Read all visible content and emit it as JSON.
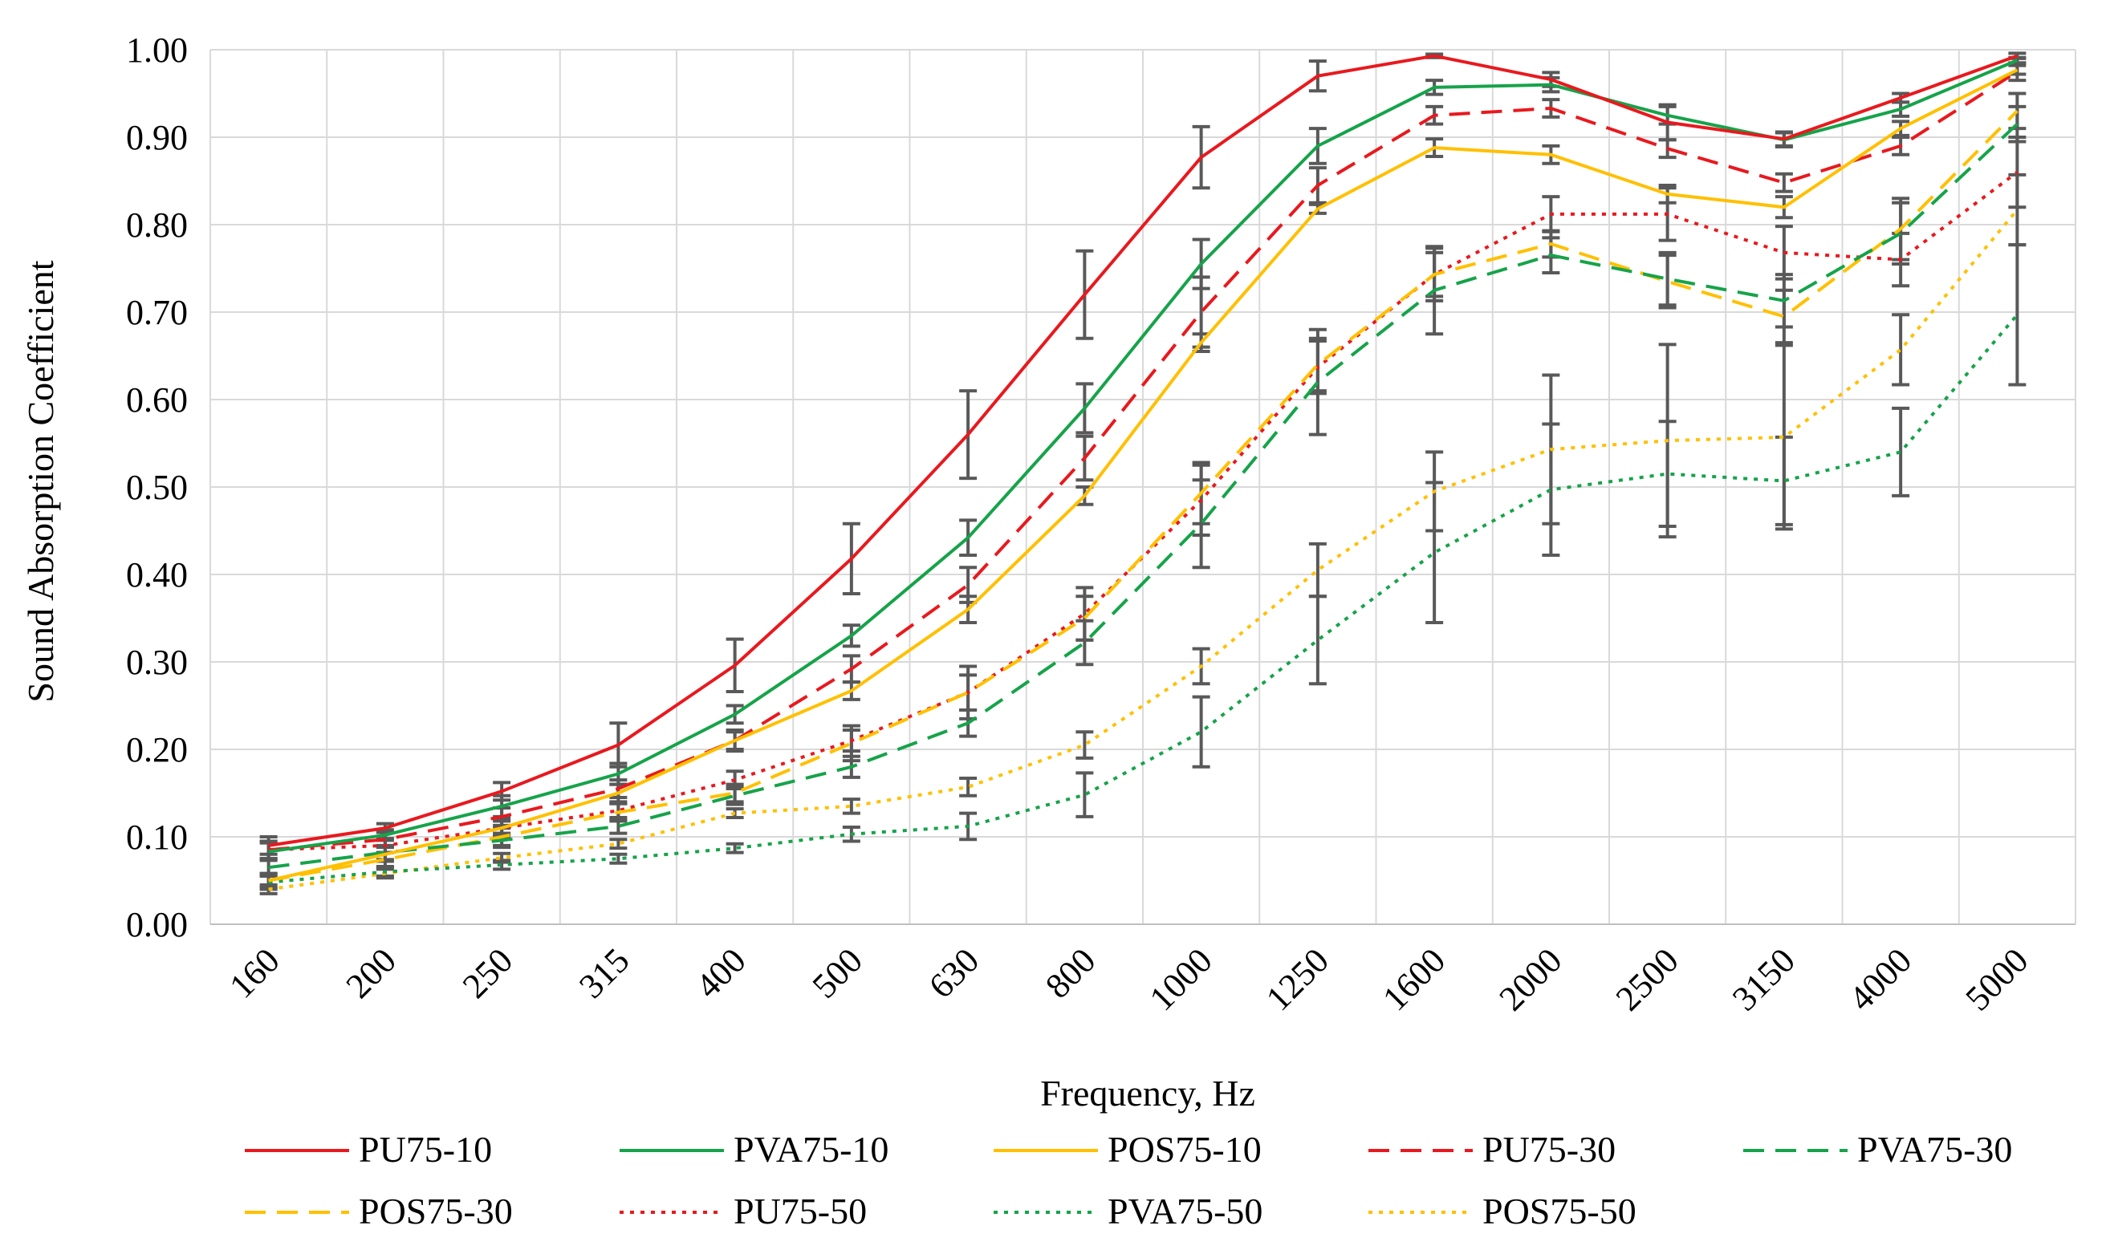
{
  "chart_data": {
    "type": "line",
    "title": "",
    "xlabel": "Frequency, Hz",
    "ylabel": "Sound Absorption Coefficient",
    "ylim": [
      0,
      1
    ],
    "y_ticks": [
      "0.00",
      "0.10",
      "0.20",
      "0.30",
      "0.40",
      "0.50",
      "0.60",
      "0.70",
      "0.80",
      "0.90",
      "1.00"
    ],
    "grid": true,
    "legend_position": "bottom",
    "categories": [
      "160",
      "200",
      "250",
      "315",
      "400",
      "500",
      "630",
      "800",
      "1000",
      "1250",
      "1600",
      "2000",
      "2500",
      "3150",
      "4000",
      "5000"
    ],
    "series": [
      {
        "name": "PU75-10",
        "color": "#e8191e",
        "dash": "solid",
        "values": [
          0.09,
          0.11,
          0.152,
          0.205,
          0.296,
          0.418,
          0.56,
          0.72,
          0.877,
          0.97,
          0.993,
          0.966,
          0.917,
          0.898,
          0.945,
          0.993
        ],
        "errors": [
          0.01,
          0.005,
          0.01,
          0.025,
          0.03,
          0.04,
          0.05,
          0.05,
          0.035,
          0.017,
          0.002,
          0.008,
          0.02,
          0.008,
          0.005,
          0.003
        ]
      },
      {
        "name": "PVA75-10",
        "color": "#16a34a",
        "dash": "solid",
        "values": [
          0.083,
          0.102,
          0.135,
          0.172,
          0.24,
          0.33,
          0.442,
          0.59,
          0.755,
          0.89,
          0.957,
          0.96,
          0.925,
          0.897,
          0.932,
          0.988
        ],
        "errors": [
          0.01,
          0.006,
          0.012,
          0.012,
          0.01,
          0.012,
          0.02,
          0.028,
          0.028,
          0.02,
          0.008,
          0.008,
          0.01,
          0.008,
          0.008,
          0.003
        ]
      },
      {
        "name": "POS75-10",
        "color": "#ffc000",
        "dash": "solid",
        "values": [
          0.05,
          0.08,
          0.11,
          0.15,
          0.21,
          0.267,
          0.36,
          0.49,
          0.665,
          0.818,
          0.888,
          0.88,
          0.835,
          0.82,
          0.91,
          0.977
        ],
        "errors": [
          0.008,
          0.008,
          0.01,
          0.01,
          0.012,
          0.01,
          0.015,
          0.01,
          0.01,
          0.005,
          0.01,
          0.01,
          0.01,
          0.012,
          0.008,
          0.005
        ]
      },
      {
        "name": "PU75-30",
        "color": "#e8191e",
        "dash": "dashed",
        "values": [
          0.085,
          0.097,
          0.123,
          0.155,
          0.21,
          0.292,
          0.388,
          0.533,
          0.7,
          0.845,
          0.925,
          0.933,
          0.887,
          0.848,
          0.89,
          0.975
        ],
        "errors": [
          0.01,
          0.008,
          0.01,
          0.01,
          0.01,
          0.015,
          0.02,
          0.025,
          0.04,
          0.02,
          0.01,
          0.01,
          0.01,
          0.01,
          0.01,
          0.01
        ]
      },
      {
        "name": "PVA75-30",
        "color": "#16a34a",
        "dash": "dashed",
        "values": [
          0.065,
          0.082,
          0.096,
          0.112,
          0.147,
          0.18,
          0.23,
          0.322,
          0.458,
          0.62,
          0.725,
          0.765,
          0.738,
          0.713,
          0.79,
          0.915
        ],
        "errors": [
          0.01,
          0.008,
          0.008,
          0.008,
          0.01,
          0.012,
          0.015,
          0.025,
          0.05,
          0.06,
          0.05,
          0.02,
          0.03,
          0.03,
          0.035,
          0.02
        ]
      },
      {
        "name": "POS75-30",
        "color": "#ffc000",
        "dash": "dashed",
        "values": [
          0.05,
          0.074,
          0.1,
          0.128,
          0.15,
          0.207,
          0.265,
          0.35,
          0.493,
          0.64,
          0.743,
          0.778,
          0.735,
          0.695,
          0.795,
          0.93
        ],
        "errors": [
          0.008,
          0.008,
          0.01,
          0.01,
          0.01,
          0.02,
          0.03,
          0.025,
          0.035,
          0.03,
          0.025,
          0.015,
          0.03,
          0.03,
          0.035,
          0.02
        ]
      },
      {
        "name": "PU75-50",
        "color": "#e8191e",
        "dash": "dotted",
        "values": [
          0.085,
          0.09,
          0.11,
          0.13,
          0.165,
          0.21,
          0.265,
          0.355,
          0.485,
          0.637,
          0.743,
          0.812,
          0.812,
          0.768,
          0.76,
          0.86
        ],
        "errors": [
          0.01,
          0.008,
          0.008,
          0.008,
          0.01,
          0.012,
          0.02,
          0.03,
          0.04,
          0.03,
          0.03,
          0.02,
          0.03,
          0.03,
          0.03,
          0.04
        ]
      },
      {
        "name": "PVA75-50",
        "color": "#16a34a",
        "dash": "dotted",
        "values": [
          0.048,
          0.06,
          0.068,
          0.075,
          0.087,
          0.103,
          0.112,
          0.148,
          0.22,
          0.325,
          0.425,
          0.497,
          0.515,
          0.507,
          0.54,
          0.697
        ],
        "errors": [
          0.008,
          0.005,
          0.005,
          0.005,
          0.005,
          0.008,
          0.015,
          0.025,
          0.04,
          0.05,
          0.08,
          0.075,
          0.06,
          0.05,
          0.05,
          0.08
        ]
      },
      {
        "name": "POS75-50",
        "color": "#ffc000",
        "dash": "dotted",
        "values": [
          0.04,
          0.058,
          0.076,
          0.092,
          0.127,
          0.135,
          0.157,
          0.205,
          0.295,
          0.405,
          0.495,
          0.543,
          0.553,
          0.557,
          0.657,
          0.817
        ],
        "errors": [
          0.005,
          0.005,
          0.005,
          0.005,
          0.005,
          0.008,
          0.01,
          0.015,
          0.02,
          0.03,
          0.045,
          0.085,
          0.11,
          0.105,
          0.04,
          0.04
        ]
      }
    ]
  }
}
